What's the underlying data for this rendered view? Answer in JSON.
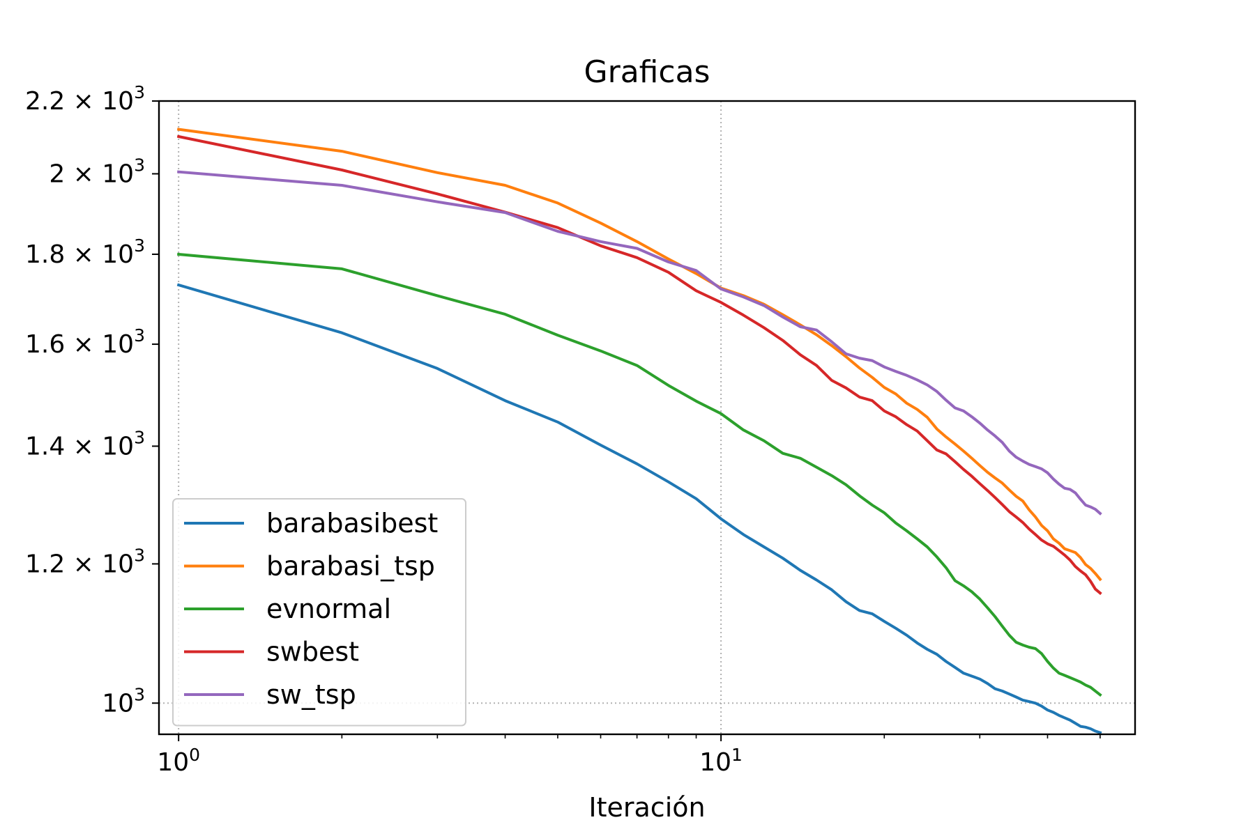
{
  "chart_data": {
    "type": "line",
    "title": "Graficas",
    "xlabel": "Iteración",
    "ylabel": "",
    "xscale": "log",
    "yscale": "log",
    "xlim": [
      0.92,
      58
    ],
    "ylim": [
      960,
      2200
    ],
    "grid": "dotted, at major ticks only",
    "legend_position": "lower-left",
    "x_ticks": [
      {
        "value": 1,
        "base": "10",
        "exp": "0"
      },
      {
        "value": 10,
        "base": "10",
        "exp": "1"
      }
    ],
    "y_ticks": [
      {
        "value": 1000,
        "mant": "",
        "base": "10",
        "exp": "3"
      },
      {
        "value": 1200,
        "mant": "1.2",
        "base": "10",
        "exp": "3"
      },
      {
        "value": 1400,
        "mant": "1.4",
        "base": "10",
        "exp": "3"
      },
      {
        "value": 1600,
        "mant": "1.6",
        "base": "10",
        "exp": "3"
      },
      {
        "value": 1800,
        "mant": "1.8",
        "base": "10",
        "exp": "3"
      },
      {
        "value": 2000,
        "mant": "2",
        "base": "10",
        "exp": "3"
      },
      {
        "value": 2200,
        "mant": "2.2",
        "base": "10",
        "exp": "3"
      }
    ],
    "x": [
      1,
      2,
      3,
      4,
      5,
      6,
      7,
      8,
      9,
      10,
      11,
      12,
      13,
      14,
      15,
      16,
      17,
      18,
      19,
      20,
      21,
      22,
      23,
      24,
      25,
      26,
      27,
      28,
      29,
      30,
      31,
      32,
      33,
      34,
      35,
      36,
      37,
      38,
      39,
      40,
      41,
      42,
      43,
      44,
      45,
      46,
      47,
      48,
      49,
      50
    ],
    "series": [
      {
        "name": "barabasibest",
        "color": "#1f77b4",
        "values": [
          1729,
          1624,
          1550,
          1486,
          1445,
          1402,
          1368,
          1336,
          1307,
          1273,
          1247,
          1227,
          1209,
          1190,
          1175,
          1160,
          1142,
          1129,
          1124,
          1113,
          1103,
          1093,
          1082,
          1073,
          1066,
          1056,
          1048,
          1040,
          1036,
          1032,
          1026,
          1019,
          1016,
          1012,
          1008,
          1004,
          1002,
          1000,
          996,
          991,
          988,
          984,
          981,
          978,
          974,
          970,
          969,
          967,
          964,
          962
        ]
      },
      {
        "name": "barabasi_tsp",
        "color": "#ff7f0e",
        "values": [
          2120,
          2060,
          2003,
          1970,
          1925,
          1875,
          1830,
          1789,
          1755,
          1722,
          1705,
          1686,
          1663,
          1641,
          1620,
          1597,
          1574,
          1551,
          1532,
          1512,
          1499,
          1481,
          1469,
          1454,
          1432,
          1417,
          1404,
          1391,
          1378,
          1365,
          1353,
          1343,
          1334,
          1322,
          1311,
          1303,
          1288,
          1276,
          1262,
          1253,
          1240,
          1233,
          1224,
          1221,
          1218,
          1210,
          1199,
          1193,
          1185,
          1176
        ]
      },
      {
        "name": "evnormal",
        "color": "#2ca02c",
        "values": [
          1800,
          1766,
          1705,
          1664,
          1619,
          1586,
          1556,
          1516,
          1485,
          1461,
          1430,
          1410,
          1387,
          1378,
          1362,
          1347,
          1331,
          1312,
          1296,
          1283,
          1266,
          1253,
          1240,
          1227,
          1211,
          1194,
          1174,
          1166,
          1157,
          1146,
          1133,
          1120,
          1106,
          1093,
          1083,
          1079,
          1076,
          1074,
          1067,
          1056,
          1047,
          1040,
          1037,
          1034,
          1031,
          1028,
          1024,
          1021,
          1016,
          1011
        ]
      },
      {
        "name": "swbest",
        "color": "#d62728",
        "values": [
          2100,
          2010,
          1948,
          1902,
          1864,
          1820,
          1792,
          1758,
          1716,
          1690,
          1662,
          1635,
          1608,
          1578,
          1556,
          1526,
          1511,
          1493,
          1486,
          1466,
          1455,
          1440,
          1428,
          1410,
          1393,
          1386,
          1372,
          1358,
          1346,
          1333,
          1321,
          1309,
          1297,
          1285,
          1276,
          1267,
          1256,
          1247,
          1238,
          1232,
          1228,
          1221,
          1214,
          1206,
          1196,
          1189,
          1183,
          1173,
          1161,
          1155
        ]
      },
      {
        "name": "sw_tsp",
        "color": "#9467bd",
        "values": [
          2005,
          1970,
          1928,
          1901,
          1855,
          1830,
          1814,
          1782,
          1762,
          1720,
          1702,
          1683,
          1658,
          1637,
          1630,
          1605,
          1580,
          1571,
          1566,
          1553,
          1544,
          1536,
          1527,
          1517,
          1504,
          1487,
          1472,
          1466,
          1455,
          1443,
          1430,
          1419,
          1407,
          1391,
          1380,
          1373,
          1367,
          1363,
          1359,
          1352,
          1341,
          1332,
          1325,
          1323,
          1317,
          1306,
          1296,
          1293,
          1289,
          1282
        ]
      }
    ]
  }
}
